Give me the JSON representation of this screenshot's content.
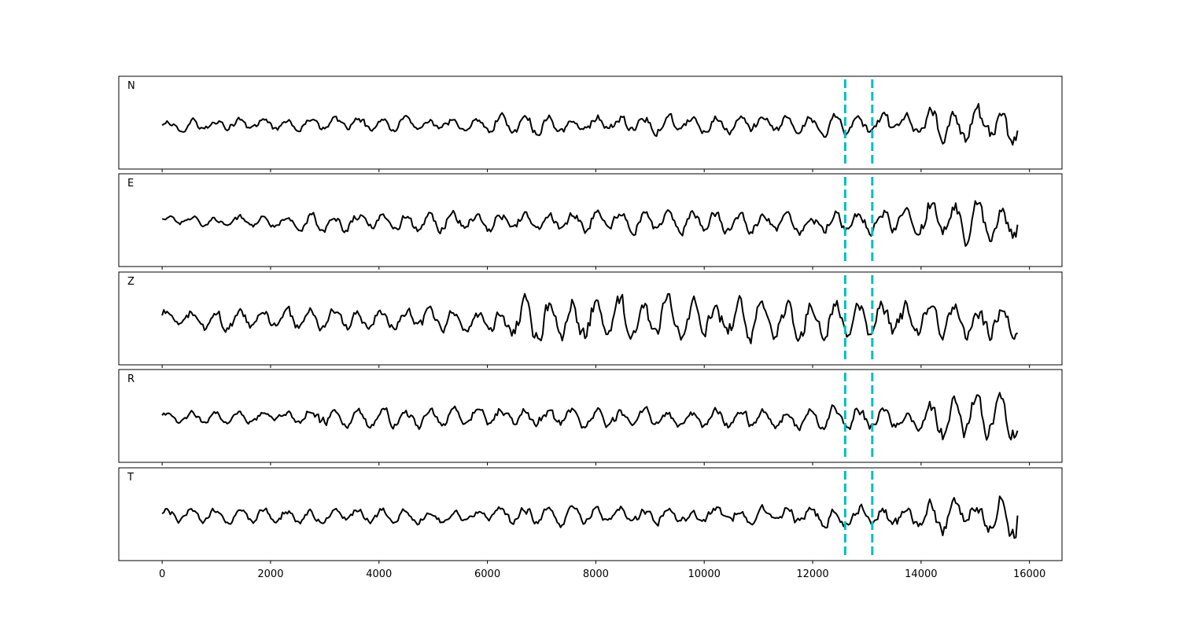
{
  "chart_data": {
    "type": "line",
    "title": "",
    "xlabel": "",
    "ylabel": "",
    "xlim": [
      -800,
      16600
    ],
    "x_ticks": [
      0,
      2000,
      4000,
      6000,
      8000,
      10000,
      12000,
      14000,
      16000
    ],
    "x_tick_labels": [
      "0",
      "2000",
      "4000",
      "6000",
      "8000",
      "10000",
      "12000",
      "14000",
      "16000"
    ],
    "n_samples": 15800,
    "grid": false,
    "vertical_markers": [
      {
        "x": 12600,
        "color": "#00bfbf",
        "style": "dashed"
      },
      {
        "x": 13100,
        "color": "#00bfbf",
        "style": "dashed"
      }
    ],
    "panels": [
      {
        "label": "N",
        "segments": [
          {
            "x": [
              0,
              6000
            ],
            "amp": 0.28
          },
          {
            "x": [
              6000,
              12000
            ],
            "amp": 0.38
          },
          {
            "x": [
              12000,
              14100
            ],
            "amp": 0.45
          },
          {
            "x": [
              14100,
              15500
            ],
            "amp": 0.75
          },
          {
            "x": [
              15500,
              15800
            ],
            "amp": 1.0
          }
        ]
      },
      {
        "label": "E",
        "segments": [
          {
            "x": [
              0,
              2500
            ],
            "amp": 0.25
          },
          {
            "x": [
              2500,
              7500
            ],
            "amp": 0.4
          },
          {
            "x": [
              7500,
              12000
            ],
            "amp": 0.45
          },
          {
            "x": [
              12000,
              14100
            ],
            "amp": 0.5
          },
          {
            "x": [
              14100,
              15800
            ],
            "amp": 0.9
          }
        ]
      },
      {
        "label": "Z",
        "segments": [
          {
            "x": [
              0,
              6300
            ],
            "amp": 0.45
          },
          {
            "x": [
              6300,
              11000
            ],
            "amp": 0.9
          },
          {
            "x": [
              11000,
              15800
            ],
            "amp": 0.75
          }
        ]
      },
      {
        "label": "R",
        "segments": [
          {
            "x": [
              0,
              2500
            ],
            "amp": 0.25
          },
          {
            "x": [
              2500,
              12000
            ],
            "amp": 0.42
          },
          {
            "x": [
              12000,
              14100
            ],
            "amp": 0.5
          },
          {
            "x": [
              14100,
              15800
            ],
            "amp": 0.95
          }
        ]
      },
      {
        "label": "T",
        "segments": [
          {
            "x": [
              0,
              6000
            ],
            "amp": 0.3
          },
          {
            "x": [
              6000,
              12000
            ],
            "amp": 0.4
          },
          {
            "x": [
              12000,
              14100
            ],
            "amp": 0.45
          },
          {
            "x": [
              14100,
              15400
            ],
            "amp": 0.7
          },
          {
            "x": [
              15400,
              15800
            ],
            "amp": 1.0
          }
        ]
      }
    ]
  }
}
